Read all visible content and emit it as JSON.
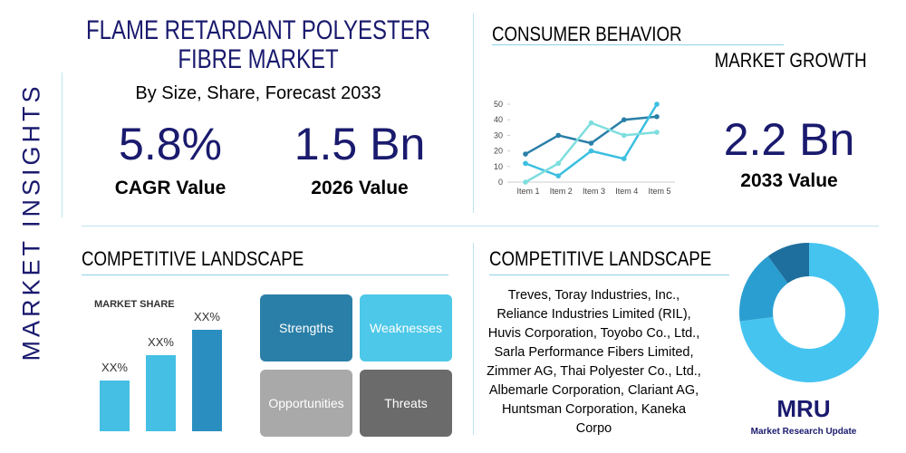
{
  "sidebar": "MARKET INSIGHTS",
  "header": {
    "title": "FLAME RETARDANT POLYESTER FIBRE MARKET",
    "subtitle": "By Size, Share, Forecast 2033"
  },
  "stats": [
    {
      "value": "5.8%",
      "label": "CAGR Value"
    },
    {
      "value": "1.5 Bn",
      "label": "2026 Value"
    }
  ],
  "consumer": {
    "title": "CONSUMER BEHAVIOR",
    "growth_title": "MARKET GROWTH",
    "growth_value": "2.2 Bn",
    "growth_label": "2033 Value"
  },
  "competitive_left": {
    "title": "COMPETITIVE LANDSCAPE",
    "swot": [
      "Strengths",
      "Weaknesses",
      "Opportunities",
      "Threats"
    ]
  },
  "competitive_right": {
    "title": "COMPETITIVE LANDSCAPE",
    "text": "Treves, Toray Industries, Inc., Reliance Industries Limited (RIL), Huvis Corporation, Toyobo Co., Ltd., Sarla Performance Fibers Limited, Zimmer AG, Thai Polyester Co., Ltd., Albemarle Corporation, Clariant AG, Huntsman Corporation, Kaneka Corpo"
  },
  "logo": {
    "mark": "MRU",
    "name": "Market Research Update"
  },
  "chart_data": [
    {
      "type": "line",
      "categories": [
        "Item 1",
        "Item 2",
        "Item 3",
        "Item 4",
        "Item 5"
      ],
      "ylim": [
        0,
        50
      ],
      "yticks": [
        0,
        10,
        20,
        30,
        40,
        50
      ],
      "series": [
        {
          "color": "#2a7fa8",
          "values": [
            18,
            30,
            25,
            40,
            42
          ]
        },
        {
          "color": "#3cbfe0",
          "values": [
            12,
            4,
            20,
            15,
            50
          ]
        },
        {
          "color": "#7fdede",
          "values": [
            0,
            12,
            38,
            30,
            32
          ]
        }
      ]
    },
    {
      "type": "bar",
      "title": "MARKET SHARE",
      "values": [
        20,
        30,
        40
      ],
      "value_labels": [
        "XX%",
        "XX%",
        "XX%"
      ],
      "ylim": [
        0,
        40
      ],
      "color": "#45bfe3"
    },
    {
      "type": "pie",
      "values": [
        73,
        17,
        10
      ],
      "colors": [
        "#45c4f0",
        "#2a9ed0",
        "#1e6f9e"
      ]
    }
  ]
}
